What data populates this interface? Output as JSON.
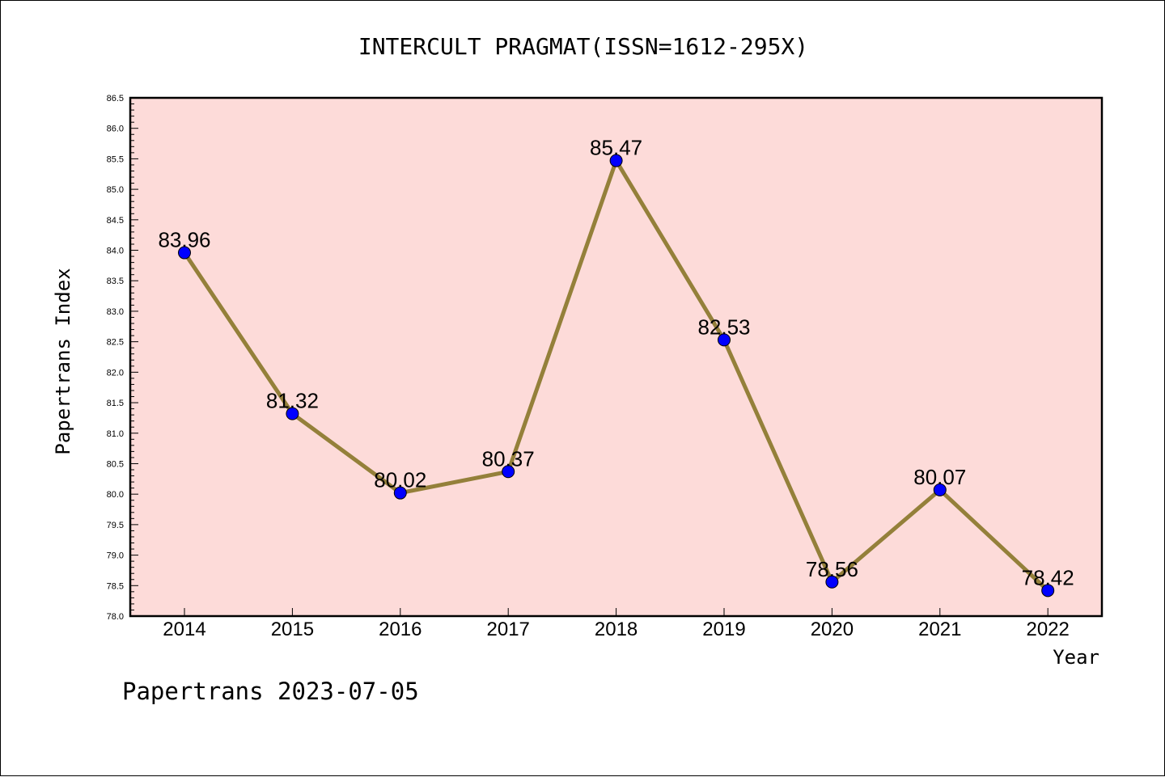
{
  "chart_data": {
    "type": "line",
    "title": "INTERCULT PRAGMAT(ISSN=1612-295X)",
    "xlabel": "Year",
    "ylabel": "Papertrans Index",
    "x": [
      "2014",
      "2015",
      "2016",
      "2017",
      "2018",
      "2019",
      "2020",
      "2021",
      "2022"
    ],
    "values": [
      83.96,
      81.32,
      80.02,
      80.37,
      85.47,
      82.53,
      78.56,
      80.07,
      78.42
    ],
    "data_labels": [
      "83.96",
      "81.32",
      "80.02",
      "80.37",
      "85.47",
      "82.53",
      "78.56",
      "80.07",
      "78.42"
    ],
    "ylim": [
      78.0,
      86.5
    ],
    "yticks": [
      "78.0",
      "78.5",
      "79.0",
      "79.5",
      "80.0",
      "80.5",
      "81.0",
      "81.5",
      "82.0",
      "82.5",
      "83.0",
      "83.5",
      "84.0",
      "84.5",
      "85.0",
      "85.5",
      "86.0",
      "86.5"
    ],
    "grid": false,
    "colors": {
      "plot_background": "#fddbd9",
      "line": "#94803a",
      "marker": "#0000ff"
    }
  },
  "footer": "Papertrans 2023-07-05"
}
